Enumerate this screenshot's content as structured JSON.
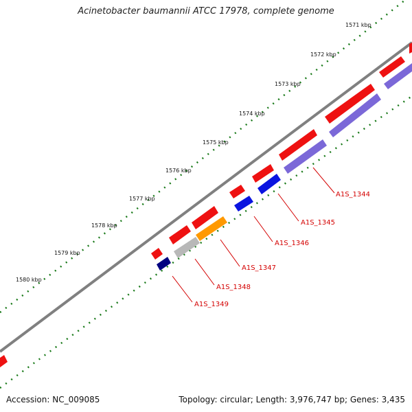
{
  "title": "Acinetobacter baumannii ATCC 17978, complete genome",
  "accession": "Accession: NC_009085",
  "summary": "Topology: circular; Length: 3,976,747 bp; Genes: 3,435",
  "ticks": [
    "1571 kbp",
    "1572 kbp",
    "1573 kbp",
    "1574 kbp",
    "1575 kbp",
    "1576 kbp",
    "1577 kbp",
    "1578 kbp",
    "1579 kbp",
    "1580 kbp"
  ],
  "gene_labels": [
    "A1S_1344",
    "A1S_1345",
    "A1S_1346",
    "A1S_1347",
    "A1S_1348",
    "A1S_1349"
  ],
  "colors": {
    "backbone": "#808080",
    "tick": "#1a7a1a",
    "forward_gene": "#ee1111",
    "lavender_gene": "#7b68d8",
    "blue_gene": "#0a14e0",
    "orange_gene": "#ff9900",
    "gray_gene": "#b8b8b8",
    "navy_gene": "#000080",
    "label": "#d40000"
  }
}
